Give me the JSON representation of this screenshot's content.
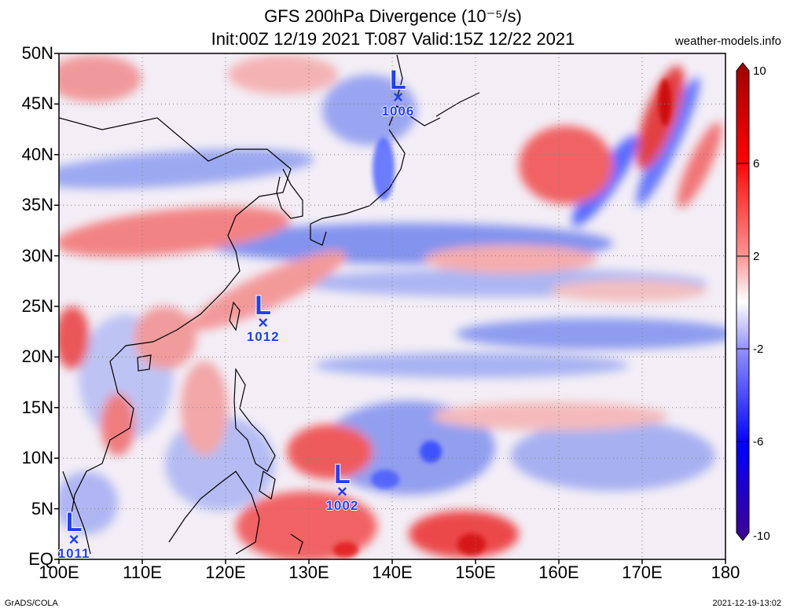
{
  "title_line1": "GFS 200hPa Divergence (10⁻⁵/s)",
  "title_line2": "Init:00Z 12/19 2021 T:087 Valid:15Z 12/22 2021",
  "site": "weather-models.info",
  "lat_labels": [
    "50N",
    "45N",
    "40N",
    "35N",
    "30N",
    "25N",
    "20N",
    "15N",
    "10N",
    "5N",
    "EQ"
  ],
  "lon_labels": [
    "100E",
    "110E",
    "120E",
    "130E",
    "140E",
    "150E",
    "160E",
    "170E",
    "180"
  ],
  "colorbar": {
    "labels": [
      "10",
      "6",
      "2",
      "-2",
      "-6",
      "-10"
    ],
    "colors": [
      "#a00000",
      "#ff0000",
      "#ff8080",
      "#ffffff",
      "#8080ff",
      "#0000ff",
      "#400090"
    ]
  },
  "lows": [
    {
      "label": "L",
      "mark": "×",
      "pressure": "1006",
      "lon": 140.7,
      "lat": 45.5
    },
    {
      "label": "L",
      "mark": "×",
      "pressure": "1012",
      "lon": 124.5,
      "lat": 23.2
    },
    {
      "label": "L",
      "mark": "×",
      "pressure": "1002",
      "lon": 134.0,
      "lat": 6.5
    },
    {
      "label": "L",
      "mark": "×",
      "pressure": "1011",
      "lon": 101.8,
      "lat": 1.8
    }
  ],
  "footer_left": "GrADS/COLA",
  "footer_right": "2021-12-19-13:02"
}
